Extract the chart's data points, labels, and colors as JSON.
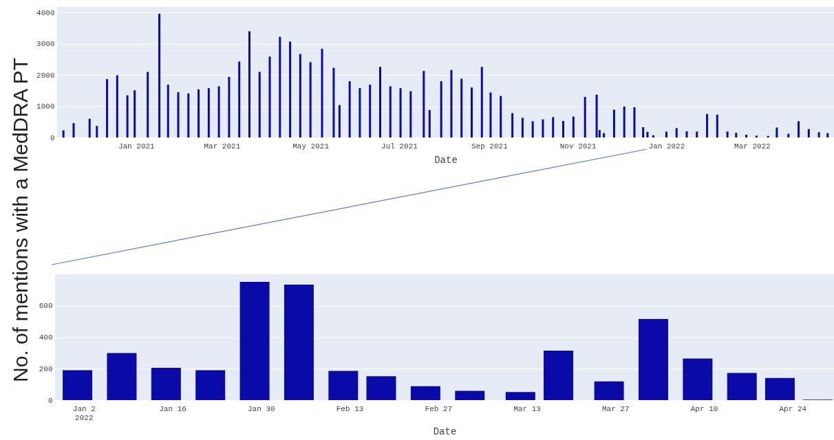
{
  "chart_data": [
    {
      "type": "bar",
      "xlabel": "Date",
      "ylabel": "No. of mentions with a MedDRA PT",
      "x": [
        "2020-11-12",
        "2020-11-19",
        "2020-11-30",
        "2020-12-05",
        "2020-12-12",
        "2020-12-19",
        "2020-12-26",
        "2020-12-31",
        "2021-01-09",
        "2021-01-17",
        "2021-01-23",
        "2021-01-30",
        "2021-02-06",
        "2021-02-13",
        "2021-02-20",
        "2021-02-27",
        "2021-03-06",
        "2021-03-13",
        "2021-03-20",
        "2021-03-27",
        "2021-04-03",
        "2021-04-10",
        "2021-04-17",
        "2021-04-24",
        "2021-05-01",
        "2021-05-09",
        "2021-05-17",
        "2021-05-21",
        "2021-05-28",
        "2021-06-04",
        "2021-06-11",
        "2021-06-18",
        "2021-06-25",
        "2021-07-02",
        "2021-07-09",
        "2021-07-18",
        "2021-07-22",
        "2021-07-30",
        "2021-08-06",
        "2021-08-13",
        "2021-08-20",
        "2021-08-27",
        "2021-09-02",
        "2021-09-09",
        "2021-09-17",
        "2021-09-24",
        "2021-10-01",
        "2021-10-08",
        "2021-10-15",
        "2021-10-22",
        "2021-10-29",
        "2021-11-06",
        "2021-11-14",
        "2021-11-16",
        "2021-11-19",
        "2021-11-26",
        "2021-12-03",
        "2021-12-10",
        "2021-12-16",
        "2021-12-19",
        "2021-12-23",
        "2022-01-01",
        "2022-01-08",
        "2022-01-15",
        "2022-01-22",
        "2022-01-29",
        "2022-02-05",
        "2022-02-12",
        "2022-02-18",
        "2022-02-25",
        "2022-03-04",
        "2022-03-12",
        "2022-03-18",
        "2022-03-26",
        "2022-04-02",
        "2022-04-09",
        "2022-04-16",
        "2022-04-22"
      ],
      "series": [
        {
          "color": "#0a0aa8",
          "values": [
            230,
            460,
            600,
            370,
            1870,
            1990,
            1350,
            1510,
            2100,
            3960,
            1690,
            1450,
            1410,
            1540,
            1580,
            1640,
            1940,
            2430,
            3400,
            2100,
            2590,
            3220,
            3070,
            2670,
            2410,
            2840,
            2230,
            1040,
            1800,
            1580,
            1690,
            2260,
            1640,
            1580,
            1480,
            2130,
            880,
            1800,
            2160,
            1880,
            1600,
            2260,
            1440,
            1330,
            780,
            630,
            520,
            580,
            650,
            530,
            670,
            1300,
            1370,
            240,
            140,
            890,
            990,
            970,
            330,
            180,
            70,
            190,
            300,
            200,
            190,
            750,
            730,
            190,
            150,
            90,
            60,
            50,
            320,
            120,
            520,
            270,
            170,
            140
          ]
        }
      ],
      "xlim": [
        "2020-11-10",
        "2022-04-24"
      ],
      "ylim": [
        0,
        4180
      ],
      "xticks": [
        {
          "value": "2021-01-01",
          "label": "Jan 2021"
        },
        {
          "value": "2021-03-01",
          "label": "Mar 2021"
        },
        {
          "value": "2021-05-01",
          "label": "May 2021"
        },
        {
          "value": "2021-07-01",
          "label": "Jul 2021"
        },
        {
          "value": "2021-09-01",
          "label": "Sep 2021"
        },
        {
          "value": "2021-11-01",
          "label": "Nov 2021"
        },
        {
          "value": "2022-01-01",
          "label": "Jan 2022"
        },
        {
          "value": "2022-03-01",
          "label": "Mar 2022"
        }
      ],
      "yticks": [
        0,
        1000,
        2000,
        3000,
        4000
      ],
      "grid": "y"
    },
    {
      "type": "bar",
      "xlabel": "Date",
      "x": [
        "2022-01-01",
        "2022-01-08",
        "2022-01-15",
        "2022-01-22",
        "2022-01-29",
        "2022-02-05",
        "2022-02-12",
        "2022-02-18",
        "2022-02-25",
        "2022-03-04",
        "2022-03-12",
        "2022-03-18",
        "2022-03-26",
        "2022-04-02",
        "2022-04-09",
        "2022-04-16",
        "2022-04-22",
        "2022-04-28"
      ],
      "series": [
        {
          "color": "#0a0aa8",
          "values": [
            190,
            300,
            205,
            190,
            752,
            734,
            186,
            152,
            88,
            59,
            51,
            315,
            119,
            516,
            265,
            173,
            141,
            3
          ]
        }
      ],
      "xlim": [
        "2021-12-29",
        "2022-04-30"
      ],
      "ylim": [
        0,
        800
      ],
      "xticks": [
        {
          "value": "2022-01-02",
          "label": "Jan 2\n2022"
        },
        {
          "value": "2022-01-16",
          "label": "Jan 16"
        },
        {
          "value": "2022-01-30",
          "label": "Jan 30"
        },
        {
          "value": "2022-02-13",
          "label": "Feb 13"
        },
        {
          "value": "2022-02-27",
          "label": "Feb 27"
        },
        {
          "value": "2022-03-13",
          "label": "Mar 13"
        },
        {
          "value": "2022-03-27",
          "label": "Mar 27"
        },
        {
          "value": "2022-04-10",
          "label": "Apr 10"
        },
        {
          "value": "2022-04-24",
          "label": "Apr 24"
        }
      ],
      "yticks": [
        0,
        200,
        400,
        600
      ],
      "grid": "y"
    }
  ]
}
